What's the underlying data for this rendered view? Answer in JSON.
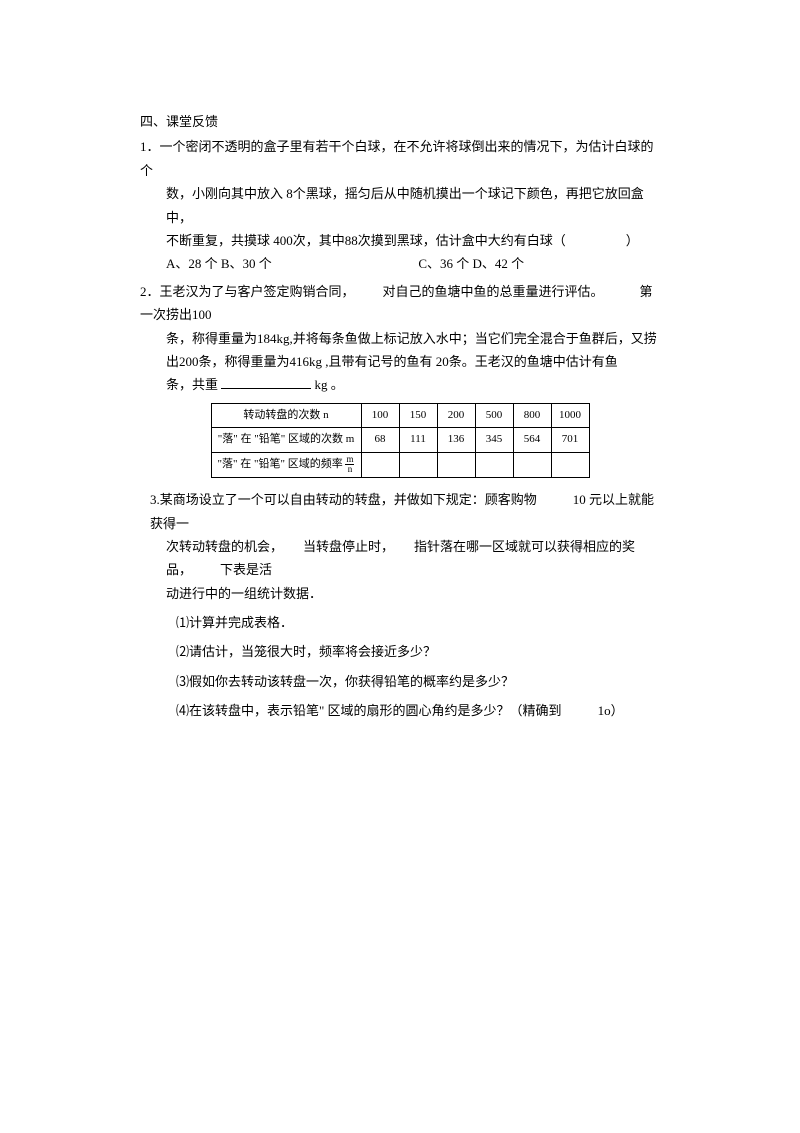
{
  "section_title": "四、课堂反馈",
  "q1": {
    "num": "1",
    "line1": "．一个密闭不透明的盒子里有若干个白球，在不允许将球倒出来的情况下，为估计白球的个",
    "line2": "数，小刚向其中放入 8个黑球，摇匀后从中随机摸出一个球记下颜色，再把它放回盒中，",
    "line3": "不断重复，共摸球 400次，其中88次摸到黑球，估计盒中大约有白球（",
    "line3_close": "）",
    "opt_a": "A、28 个",
    "opt_b": "B、30 个",
    "opt_c": "C、36 个",
    "opt_d": "D、42 个"
  },
  "q2": {
    "num": "2",
    "line1a": "．王老汉为了与客户签定购销合同，",
    "line1b": "对自己的鱼塘中鱼的总重量进行评估。",
    "line1c": "第一次捞出100",
    "line2": "条，称得重量为184kg,并将每条鱼做上标记放入水中；当它们完全混合于鱼群后，又捞",
    "line3": "出200条，称得重量为416kg ,且带有记号的鱼有 20条。王老汉的鱼塘中估计有鱼",
    "line4a": "条，共重",
    "line4b": "kg 。"
  },
  "table": {
    "header_label": "转动转盘的次数 n",
    "row1_label": "\"落\" 在 \"铅笔\" 区域的次数 m",
    "row2_label_a": "\"落\" 在 \"铅笔\" 区域的频率",
    "row2_frac_num": "m",
    "row2_frac_den": "n",
    "cols": [
      "100",
      "150",
      "200",
      "500",
      "800",
      "1000"
    ],
    "row1": [
      "68",
      "111",
      "136",
      "345",
      "564",
      "701"
    ],
    "row2": [
      "",
      "",
      "",
      "",
      "",
      ""
    ]
  },
  "q3": {
    "num": "3.",
    "line1a": "某商场设立了一个可以自由转动的转盘，并做如下规定：顾客购物",
    "line1b": "10 元以上就能获得一",
    "line2a": "次转动转盘的机会，",
    "line2b": "当转盘停止时，",
    "line2c": "指针落在哪一区域就可以获得相应的奖品，",
    "line2d": "下表是活",
    "line3": "动进行中的一组统计数据．",
    "sub1": "⑴计算并完成表格．",
    "sub2": "⑵请估计，当笼很大时，频率将会接近多少？",
    "sub3": "⑶假如你去转动该转盘一次，你获得铅笔的概率约是多少？",
    "sub4a": "⑷在该转盘中，表示铅笔\" 区域的扇形的圆心角约是多少？（精确到",
    "sub4b": "1o）"
  }
}
